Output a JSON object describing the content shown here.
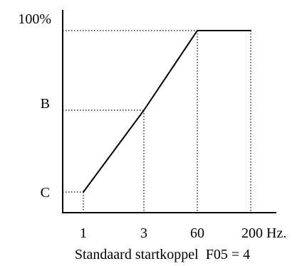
{
  "chart_data": {
    "type": "line",
    "title": "",
    "caption": "Standaard startkoppel  F05 = 4",
    "x_tick_labels": [
      "1",
      "3",
      "60",
      "200 Hz."
    ],
    "y_tick_labels": [
      "C",
      "B",
      "100%"
    ],
    "grid": false,
    "guide_lines": "dotted",
    "series": [
      {
        "points": [
          {
            "x": "1",
            "y": "C"
          },
          {
            "x": "3",
            "y": "B"
          },
          {
            "x": "60",
            "y": "100%"
          },
          {
            "x": "200 Hz.",
            "y": "100%"
          }
        ]
      }
    ]
  },
  "colors": {
    "line": "#000000",
    "background": "#ffffff"
  }
}
